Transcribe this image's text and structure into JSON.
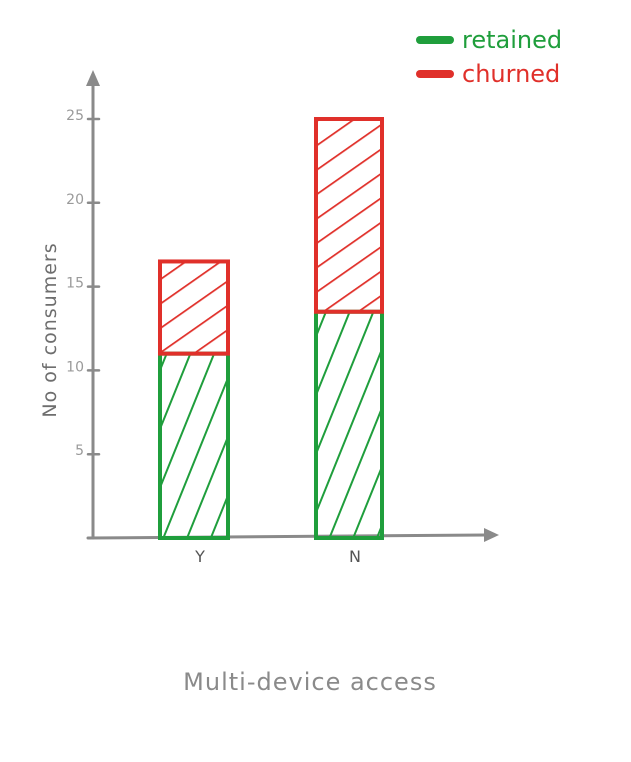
{
  "chart_data": {
    "type": "bar",
    "stacked": true,
    "categories": [
      "Y",
      "N"
    ],
    "series": [
      {
        "name": "retained",
        "values": [
          11,
          13.5
        ],
        "color": "#1f9e3c"
      },
      {
        "name": "churned",
        "values": [
          5.5,
          11.5
        ],
        "color": "#e0302a"
      }
    ],
    "xlabel": "Multi-device access",
    "ylabel": "No of consumers",
    "yticks": [
      5,
      10,
      15,
      20,
      25
    ],
    "ylim": [
      0,
      25
    ],
    "legend_position": "top-right",
    "grid": false
  }
}
